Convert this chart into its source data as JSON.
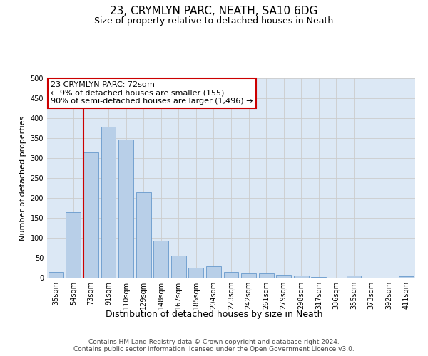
{
  "title": "23, CRYMLYN PARC, NEATH, SA10 6DG",
  "subtitle": "Size of property relative to detached houses in Neath",
  "xlabel": "Distribution of detached houses by size in Neath",
  "ylabel": "Number of detached properties",
  "categories": [
    "35sqm",
    "54sqm",
    "73sqm",
    "91sqm",
    "110sqm",
    "129sqm",
    "148sqm",
    "167sqm",
    "185sqm",
    "204sqm",
    "223sqm",
    "242sqm",
    "261sqm",
    "279sqm",
    "298sqm",
    "317sqm",
    "336sqm",
    "355sqm",
    "373sqm",
    "392sqm",
    "411sqm"
  ],
  "values": [
    15,
    165,
    315,
    378,
    346,
    215,
    93,
    55,
    25,
    29,
    15,
    11,
    10,
    8,
    5,
    1,
    0,
    5,
    0,
    0,
    4
  ],
  "bar_color": "#b8cfe8",
  "bar_edge_color": "#6699cc",
  "vline_color": "#cc0000",
  "annotation_text": "23 CRYMLYN PARC: 72sqm\n← 9% of detached houses are smaller (155)\n90% of semi-detached houses are larger (1,496) →",
  "annotation_box_color": "#cc0000",
  "ylim": [
    0,
    500
  ],
  "yticks": [
    0,
    50,
    100,
    150,
    200,
    250,
    300,
    350,
    400,
    450,
    500
  ],
  "grid_color": "#cccccc",
  "bg_color": "#dce8f5",
  "footer": "Contains HM Land Registry data © Crown copyright and database right 2024.\nContains public sector information licensed under the Open Government Licence v3.0.",
  "title_fontsize": 11,
  "subtitle_fontsize": 9,
  "xlabel_fontsize": 9,
  "ylabel_fontsize": 8,
  "tick_fontsize": 7,
  "footer_fontsize": 6.5,
  "annotation_fontsize": 8
}
